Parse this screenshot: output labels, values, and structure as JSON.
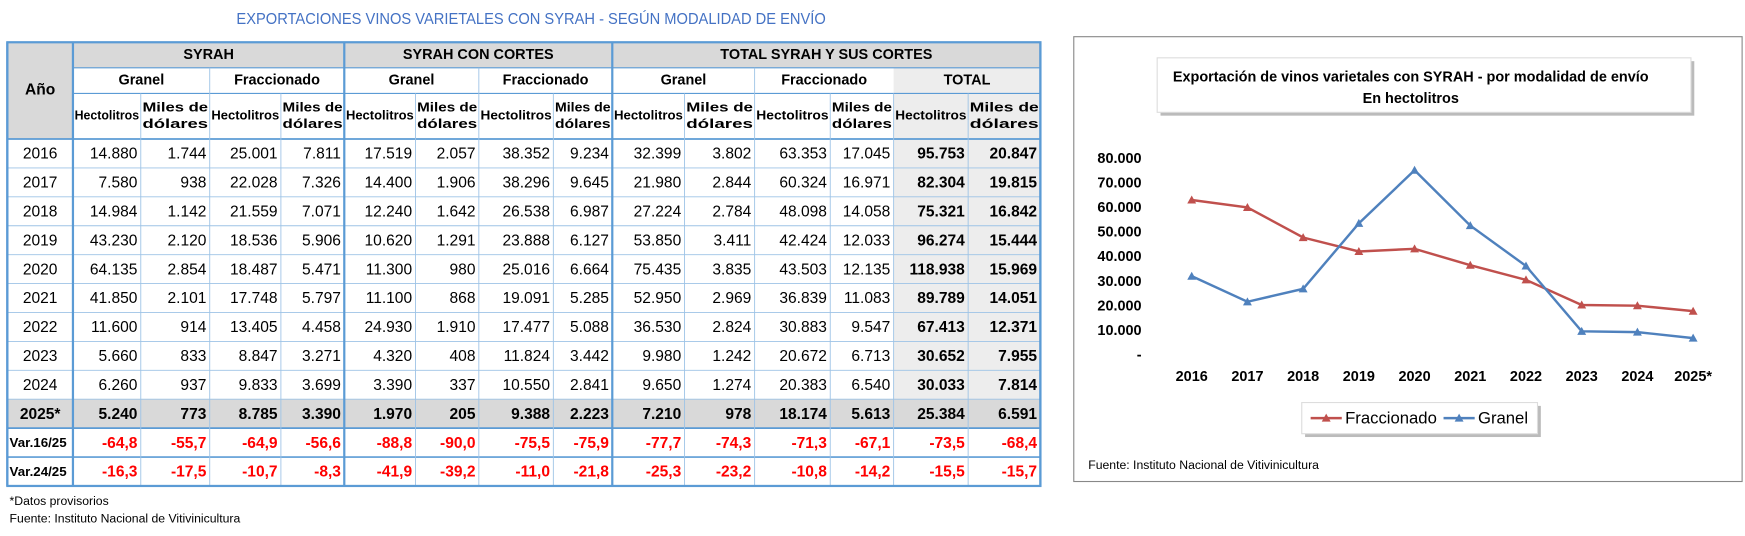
{
  "title": "EXPORTACIONES VINOS VARIETALES CON SYRAH - SEGÚN MODALIDAD DE ENVÍO",
  "table": {
    "corner": "Año",
    "groups": [
      "SYRAH",
      "SYRAH CON CORTES",
      "TOTAL SYRAH Y SUS CORTES"
    ],
    "subgroups": [
      "Granel",
      "Fraccionado",
      "Granel",
      "Fraccionado",
      "Granel",
      "Fraccionado",
      "TOTAL"
    ],
    "units": [
      [
        "Hectolitros"
      ],
      [
        "Miles de",
        "dólares"
      ],
      [
        "Hectolitros"
      ],
      [
        "Miles de",
        "dólares"
      ],
      [
        "Hectolitros"
      ],
      [
        "Miles de",
        "dólares"
      ],
      [
        "Hectolitros"
      ],
      [
        "Miles de",
        "dólares"
      ],
      [
        "Hectolitros"
      ],
      [
        "Miles de",
        "dólares"
      ],
      [
        "Hectolitros"
      ],
      [
        "Miles de",
        "dólares"
      ],
      [
        "Hectolitros"
      ],
      [
        "Miles de",
        "dólares"
      ]
    ],
    "rows": [
      [
        "2016",
        "14.880",
        "1.744",
        "25.001",
        "7.811",
        "17.519",
        "2.057",
        "38.352",
        "9.234",
        "32.399",
        "3.802",
        "63.353",
        "17.045",
        "95.753",
        "20.847"
      ],
      [
        "2017",
        "7.580",
        "938",
        "22.028",
        "7.326",
        "14.400",
        "1.906",
        "38.296",
        "9.645",
        "21.980",
        "2.844",
        "60.324",
        "16.971",
        "82.304",
        "19.815"
      ],
      [
        "2018",
        "14.984",
        "1.142",
        "21.559",
        "7.071",
        "12.240",
        "1.642",
        "26.538",
        "6.987",
        "27.224",
        "2.784",
        "48.098",
        "14.058",
        "75.321",
        "16.842"
      ],
      [
        "2019",
        "43.230",
        "2.120",
        "18.536",
        "5.906",
        "10.620",
        "1.291",
        "23.888",
        "6.127",
        "53.850",
        "3.411",
        "42.424",
        "12.033",
        "96.274",
        "15.444"
      ],
      [
        "2020",
        "64.135",
        "2.854",
        "18.487",
        "5.471",
        "11.300",
        "980",
        "25.016",
        "6.664",
        "75.435",
        "3.835",
        "43.503",
        "12.135",
        "118.938",
        "15.969"
      ],
      [
        "2021",
        "41.850",
        "2.101",
        "17.748",
        "5.797",
        "11.100",
        "868",
        "19.091",
        "5.285",
        "52.950",
        "2.969",
        "36.839",
        "11.083",
        "89.789",
        "14.051"
      ],
      [
        "2022",
        "11.600",
        "914",
        "13.405",
        "4.458",
        "24.930",
        "1.910",
        "17.477",
        "5.088",
        "36.530",
        "2.824",
        "30.883",
        "9.547",
        "67.413",
        "12.371"
      ],
      [
        "2023",
        "5.660",
        "833",
        "8.847",
        "3.271",
        "4.320",
        "408",
        "11.824",
        "3.442",
        "9.980",
        "1.242",
        "20.672",
        "6.713",
        "30.652",
        "7.955"
      ],
      [
        "2024",
        "6.260",
        "937",
        "9.833",
        "3.699",
        "3.390",
        "337",
        "10.550",
        "2.841",
        "9.650",
        "1.274",
        "20.383",
        "6.540",
        "30.033",
        "7.814"
      ],
      [
        "2025*",
        "5.240",
        "773",
        "8.785",
        "3.390",
        "1.970",
        "205",
        "9.388",
        "2.223",
        "7.210",
        "978",
        "18.174",
        "5.613",
        "25.384",
        "6.591"
      ],
      [
        "Var.16/25",
        "-64,8",
        "-55,7",
        "-64,9",
        "-56,6",
        "-88,8",
        "-90,0",
        "-75,5",
        "-75,9",
        "-77,7",
        "-74,3",
        "-71,3",
        "-67,1",
        "-73,5",
        "-68,4"
      ],
      [
        "Var.24/25",
        "-16,3",
        "-17,5",
        "-10,7",
        "-8,3",
        "-41,9",
        "-39,2",
        "-11,0",
        "-21,8",
        "-25,3",
        "-23,2",
        "-10,8",
        "-14,2",
        "-15,5",
        "-15,7"
      ]
    ]
  },
  "notes": [
    "*Datos provisorios",
    "Fuente: Instituto  Nacional de Vitivinicultura"
  ],
  "chart_data": {
    "type": "line",
    "title": "Exportación de vinos varietales con SYRAH - por modalidad de envío",
    "subtitle": "En hectolitros",
    "categories": [
      "2016",
      "2017",
      "2018",
      "2019",
      "2020",
      "2021",
      "2022",
      "2023",
      "2024",
      "2025*"
    ],
    "series": [
      {
        "name": "Fraccionado",
        "color": "#c0504d",
        "values": [
          63353,
          60324,
          48098,
          42424,
          43503,
          36839,
          30883,
          20672,
          20383,
          18174
        ]
      },
      {
        "name": "Granel",
        "color": "#4f81bd",
        "values": [
          32399,
          21980,
          27224,
          53850,
          75435,
          52950,
          36530,
          9980,
          9650,
          7210
        ]
      }
    ],
    "ylim": [
      0,
      80000
    ],
    "yticks": [
      {
        "value": 0,
        "label": "-"
      },
      {
        "value": 10000,
        "label": "10.000"
      },
      {
        "value": 20000,
        "label": "20.000"
      },
      {
        "value": 30000,
        "label": "30.000"
      },
      {
        "value": 40000,
        "label": "40.000"
      },
      {
        "value": 50000,
        "label": "50.000"
      },
      {
        "value": 60000,
        "label": "60.000"
      },
      {
        "value": 70000,
        "label": "70.000"
      },
      {
        "value": 80000,
        "label": "80.000"
      }
    ],
    "grid": false,
    "legend": "bottom",
    "source": "Fuente: Instituto Nacional de Vitivinicultura"
  }
}
